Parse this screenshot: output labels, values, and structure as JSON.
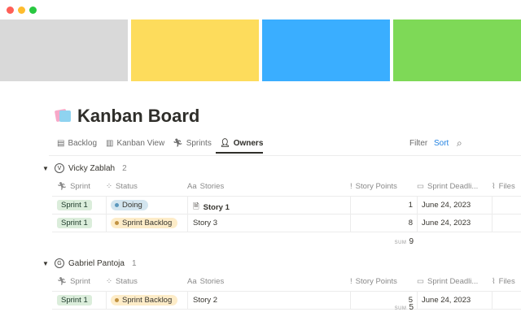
{
  "window": {
    "controls": [
      "close",
      "minimize",
      "maximize"
    ],
    "control_colors": [
      "#fe5f57",
      "#febc2e",
      "#28c840"
    ]
  },
  "cover": {
    "colors": [
      "#d9d9d9",
      "#fddc5c",
      "#3aaeff",
      "#7ed957"
    ]
  },
  "page": {
    "icon": "sticky-notes-icon",
    "title": "Kanban Board"
  },
  "tabs": [
    {
      "label": "Backlog",
      "icon": "archive-icon"
    },
    {
      "label": "Kanban View",
      "icon": "columns-icon"
    },
    {
      "label": "Sprints",
      "icon": "runner-icon"
    },
    {
      "label": "Owners",
      "icon": "person-icon",
      "active": true
    }
  ],
  "toolbar": {
    "filter": "Filter",
    "sort": "Sort",
    "search_icon": "search-icon",
    "accent": "#2383e2"
  },
  "columns": [
    "Sprint",
    "Status",
    "Stories",
    "Story Points",
    "Sprint Deadli...",
    "Files"
  ],
  "groups": [
    {
      "initial": "V",
      "name": "Vicky Zablah",
      "count": "2",
      "rows": [
        {
          "sprint": "Sprint 1",
          "status": "Doing",
          "status_color": "#5b97bd",
          "status_bg": "#d3e5ef",
          "story": "Story 1",
          "has_doc_icon": true,
          "points": "1",
          "deadline": "June 24, 2023"
        },
        {
          "sprint": "Sprint 1",
          "status": "Sprint Backlog",
          "status_color": "#c29343",
          "status_bg": "#fdecc8",
          "story": "Story 3",
          "points": "8",
          "deadline": "June 24, 2023"
        }
      ],
      "sum_label": "SUM",
      "sum": "9"
    },
    {
      "initial": "G",
      "name": "Gabriel Pantoja",
      "count": "1",
      "rows": [
        {
          "sprint": "Sprint 1",
          "status": "Sprint Backlog",
          "status_color": "#c29343",
          "status_bg": "#fdecc8",
          "story": "Story 2",
          "points": "5",
          "deadline": "June 24, 2023"
        }
      ],
      "sum_label": "SUM",
      "sum": "5"
    }
  ]
}
